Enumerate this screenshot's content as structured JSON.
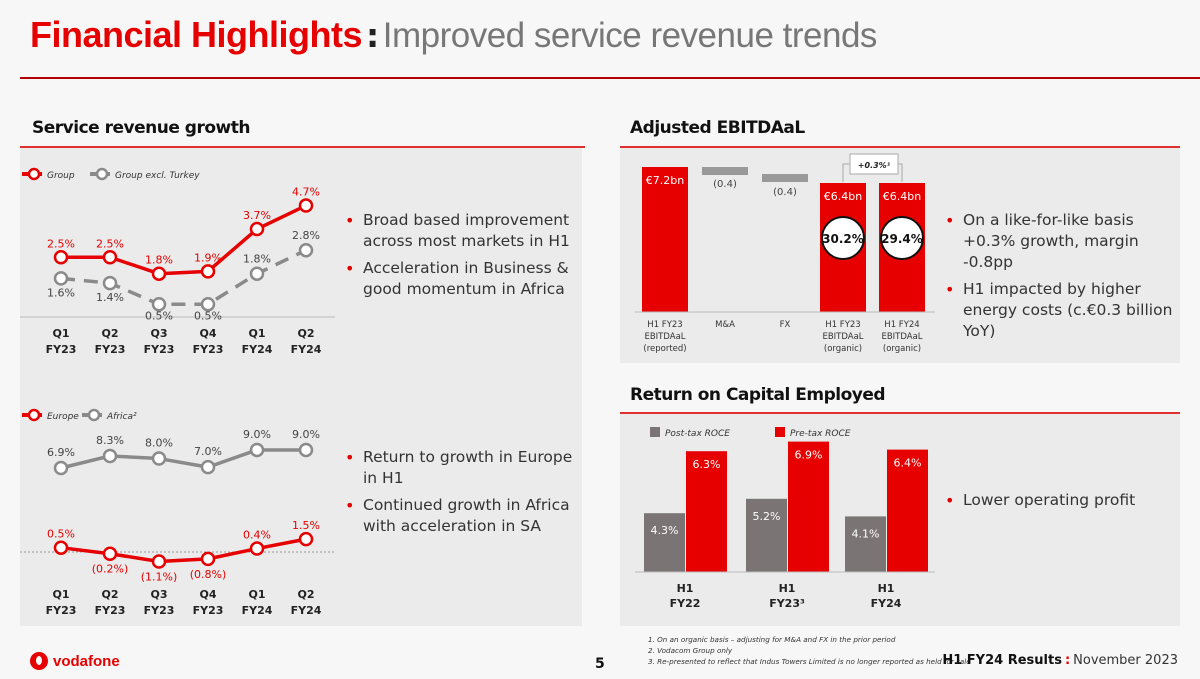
{
  "header": {
    "title_main": "Financial Highlights",
    "title_sep": ":",
    "title_sub": "Improved service revenue trends"
  },
  "sections": {
    "service_revenue": "Service revenue growth",
    "ebitdaal": "Adjusted EBITDAaL",
    "roce": "Return on Capital Employed"
  },
  "bullets": {
    "group": [
      "Broad based improvement across most markets in H1",
      "Acceleration in Business & good momentum in Africa"
    ],
    "regions": [
      "Return to growth in Europe in H1",
      "Continued growth in Africa with acceleration in SA"
    ],
    "ebitdaal": [
      "On a like-for-like basis +0.3% growth, margin -0.8pp",
      "H1 impacted by higher energy costs (c.€0.3 billion YoY)"
    ],
    "roce": [
      "Lower operating profit"
    ]
  },
  "colors": {
    "red": "#e60000",
    "grey": "#8a8a8a",
    "dark_grey": "#7a7574"
  },
  "chart_data": [
    {
      "id": "group_growth",
      "type": "line",
      "categories": [
        [
          "Q1",
          "FY23"
        ],
        [
          "Q2",
          "FY23"
        ],
        [
          "Q3",
          "FY23"
        ],
        [
          "Q4",
          "FY23"
        ],
        [
          "Q1",
          "FY24"
        ],
        [
          "Q2",
          "FY24"
        ]
      ],
      "series": [
        {
          "name": "Group",
          "values": [
            2.5,
            2.5,
            1.8,
            1.9,
            3.7,
            4.7
          ],
          "labels": [
            "2.5%",
            "2.5%",
            "1.8%",
            "1.9%",
            "3.7%",
            "4.7%"
          ],
          "style": "solid",
          "color": "#e60000"
        },
        {
          "name": "Group excl. Turkey",
          "values": [
            1.6,
            1.4,
            0.5,
            0.5,
            1.8,
            2.8
          ],
          "labels": [
            "1.6%",
            "1.4%",
            "0.5%",
            "0.5%",
            "1.8%",
            "2.8%"
          ],
          "style": "dashed",
          "color": "#8a8a8a"
        }
      ],
      "legend": "top-left"
    },
    {
      "id": "region_growth",
      "type": "line",
      "categories": [
        [
          "Q1",
          "FY23"
        ],
        [
          "Q2",
          "FY23"
        ],
        [
          "Q3",
          "FY23"
        ],
        [
          "Q4",
          "FY23"
        ],
        [
          "Q1",
          "FY24"
        ],
        [
          "Q2",
          "FY24"
        ]
      ],
      "series": [
        {
          "name": "Europe",
          "values": [
            0.5,
            -0.2,
            -1.1,
            -0.8,
            0.4,
            1.5
          ],
          "labels": [
            "0.5%",
            "(0.2%)",
            "(1.1%)",
            "(0.8%)",
            "0.4%",
            "1.5%"
          ],
          "style": "solid",
          "color": "#e60000"
        },
        {
          "name": "Africa²",
          "values": [
            6.9,
            8.3,
            8.0,
            7.0,
            9.0,
            9.0
          ],
          "labels": [
            "6.9%",
            "8.3%",
            "8.0%",
            "7.0%",
            "9.0%",
            "9.0%"
          ],
          "style": "solid",
          "color": "#8a8a8a"
        }
      ],
      "legend": "top-left"
    },
    {
      "id": "ebitdaal_bridge",
      "type": "bar",
      "subtype": "waterfall",
      "unit": "€bn",
      "categories": [
        [
          "H1 FY23",
          "EBITDAaL",
          "(reported)"
        ],
        [
          "M&A"
        ],
        [
          "FX"
        ],
        [
          "H1 FY23",
          "EBITDAaL",
          "(organic)"
        ],
        [
          "H1 FY24",
          "EBITDAaL",
          "(organic)"
        ]
      ],
      "values": [
        7.2,
        -0.4,
        -0.4,
        6.4,
        6.4
      ],
      "labels": [
        "€7.2bn",
        "(0.4)",
        "(0.4)",
        "€6.4bn",
        "€6.4bn"
      ],
      "margins": [
        null,
        null,
        null,
        "30.2%",
        "29.4%"
      ],
      "annotation": "+0.3%¹"
    },
    {
      "id": "roce",
      "type": "bar",
      "categories": [
        [
          "H1",
          "FY22"
        ],
        [
          "H1",
          "FY23³"
        ],
        [
          "H1",
          "FY24"
        ]
      ],
      "series": [
        {
          "name": "Post-tax ROCE",
          "values": [
            4.3,
            5.2,
            4.1
          ],
          "labels": [
            "4.3%",
            "5.2%",
            "4.1%"
          ],
          "color": "#7a7574"
        },
        {
          "name": "Pre-tax ROCE",
          "values": [
            6.3,
            6.9,
            6.4
          ],
          "labels": [
            "6.3%",
            "6.9%",
            "6.4%"
          ],
          "color": "#e60000"
        }
      ],
      "legend": "top-left",
      "ylim": [
        0,
        7.5
      ]
    }
  ],
  "footer": {
    "logo": "vodafone",
    "page_number": "5",
    "footnotes": [
      "1. On an organic basis – adjusting for M&A and FX in the prior period",
      "2. Vodacom Group only",
      "3. Re-presented to reflect that Indus Towers Limited is no longer reported as held for sale"
    ],
    "event": "H1 FY24 Results",
    "sep": ":",
    "date": "November 2023"
  }
}
